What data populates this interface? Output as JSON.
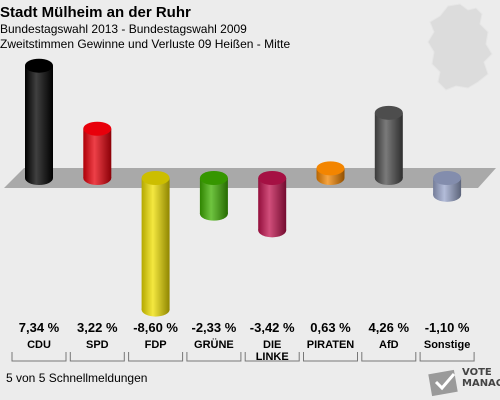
{
  "header": {
    "title": "Stadt Mülheim an der Ruhr",
    "subtitle1": "Bundestagswahl 2013 - Bundestagswahl 2009",
    "subtitle2": "Zweitstimmen Gewinne und Verluste 09 Heißen - Mitte"
  },
  "footer": {
    "text": "5 von 5 Schnellmeldungen"
  },
  "logo": {
    "line1": "VOTE",
    "line2": "MANAGER"
  },
  "chart_data": {
    "type": "bar",
    "categories": [
      "CDU",
      "SPD",
      "FDP",
      "GRÜNE",
      "DIE LINKE",
      "PIRATEN",
      "AfD",
      "Sonstige"
    ],
    "values": [
      7.34,
      3.22,
      -8.6,
      -2.33,
      -3.42,
      0.63,
      4.26,
      -1.1
    ],
    "value_labels": [
      "7,34 %",
      "3,22 %",
      "-8,60 %",
      "-2,33 %",
      "-3,42 %",
      "0,63 %",
      "4,26 %",
      "-1,10 %"
    ],
    "category_labels": [
      "CDU",
      "SPD",
      "FDP",
      "GRÜNE",
      "DIE\nLINKE",
      "PIRATEN",
      "AfD",
      "Sonstige"
    ],
    "colors": [
      "#000000",
      "#e8000b",
      "#f0e000",
      "#3fb000",
      "#c2134f",
      "#f38500",
      "#4d4d4d",
      "#9aa6cc"
    ],
    "baseline": 0
  }
}
